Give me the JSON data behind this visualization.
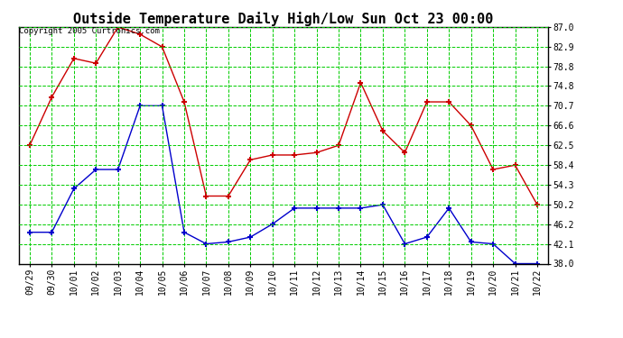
{
  "title": "Outside Temperature Daily High/Low Sun Oct 23 00:00",
  "copyright": "Copyright 2005 Curtronics.com",
  "x_labels": [
    "09/29",
    "09/30",
    "10/01",
    "10/02",
    "10/03",
    "10/04",
    "10/05",
    "10/06",
    "10/07",
    "10/08",
    "10/09",
    "10/10",
    "10/11",
    "10/12",
    "10/13",
    "10/14",
    "10/15",
    "10/16",
    "10/17",
    "10/18",
    "10/19",
    "10/20",
    "10/21",
    "10/22"
  ],
  "high_values": [
    62.5,
    72.5,
    80.5,
    79.5,
    87.0,
    85.5,
    82.9,
    71.5,
    52.0,
    52.0,
    59.5,
    60.5,
    60.5,
    61.0,
    62.5,
    75.5,
    65.5,
    61.0,
    71.5,
    71.5,
    66.6,
    57.5,
    58.4,
    50.2
  ],
  "low_values": [
    44.5,
    44.5,
    53.5,
    57.5,
    57.5,
    70.7,
    70.7,
    44.5,
    42.1,
    42.5,
    43.5,
    46.2,
    49.5,
    49.5,
    49.5,
    49.5,
    50.2,
    42.1,
    43.5,
    49.5,
    42.5,
    42.1,
    38.0,
    38.0
  ],
  "high_color": "#cc0000",
  "low_color": "#0000cc",
  "marker": "+",
  "marker_size": 5,
  "marker_edge_width": 1.5,
  "line_width": 1.0,
  "ylim_min": 38.0,
  "ylim_max": 87.0,
  "yticks": [
    38.0,
    42.1,
    46.2,
    50.2,
    54.3,
    58.4,
    62.5,
    66.6,
    70.7,
    74.8,
    78.8,
    82.9,
    87.0
  ],
  "background_color": "#ffffff",
  "plot_bg_color": "#ffffff",
  "grid_color": "#00cc00",
  "title_fontsize": 11,
  "tick_fontsize": 7,
  "copyright_fontsize": 6.5
}
